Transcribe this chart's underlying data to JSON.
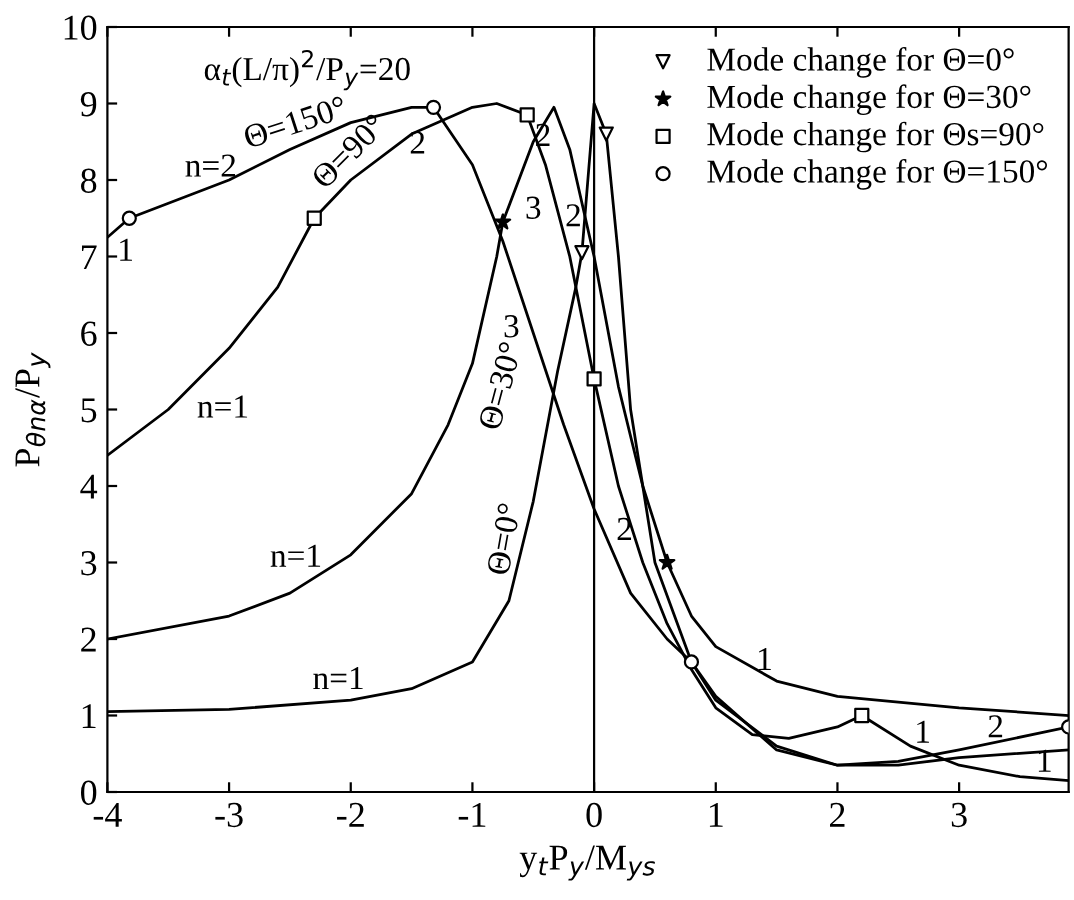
{
  "chart_data": {
    "type": "line",
    "xlabel": "y$_{t}$P$_{y}$/M$_{ys}$",
    "ylabel": "P$_{θnα}$/P$_{y}$",
    "xlim": [
      -4,
      3.9
    ],
    "ylim": [
      0,
      10
    ],
    "xticks": [
      -4,
      -3,
      -2,
      -1,
      0,
      1,
      2,
      3
    ],
    "yticks": [
      0,
      1,
      2,
      3,
      4,
      5,
      6,
      7,
      8,
      9,
      10
    ],
    "grid": false,
    "legend": "top right",
    "line_style": "solid",
    "ref_lines": [
      {
        "axis": "x",
        "value": 0,
        "color": "#000000"
      }
    ],
    "series": [
      {
        "color": "#000000",
        "marker": "none",
        "x": [
          -4,
          -3,
          -2,
          -1.5,
          -1,
          -0.7,
          -0.5,
          -0.3,
          -0.15,
          -0.1,
          0,
          0.1,
          0.2,
          0.3,
          0.5,
          0.8,
          1,
          1.5,
          2,
          2.5,
          3,
          3.9
        ],
        "values": [
          1.05,
          1.08,
          1.2,
          1.35,
          1.7,
          2.5,
          3.8,
          5.5,
          6.6,
          7.05,
          9.0,
          8.6,
          7.0,
          5.0,
          3.0,
          1.7,
          1.2,
          0.6,
          0.35,
          0.35,
          0.45,
          0.55
        ]
      },
      {
        "color": "#000000",
        "marker": "none",
        "x": [
          -4,
          -3,
          -2.5,
          -2,
          -1.5,
          -1.2,
          -1,
          -0.8,
          -0.75,
          -0.5,
          -0.33,
          -0.2,
          0,
          0.2,
          0.4,
          0.6,
          0.8,
          1,
          1.5,
          2,
          3,
          3.9
        ],
        "values": [
          2.0,
          2.3,
          2.6,
          3.1,
          3.9,
          4.8,
          5.6,
          7.0,
          7.45,
          8.5,
          8.95,
          8.4,
          7.0,
          5.3,
          4.0,
          3.0,
          2.3,
          1.9,
          1.45,
          1.25,
          1.1,
          1.0
        ]
      },
      {
        "color": "#000000",
        "marker": "none",
        "x": [
          -4,
          -3.5,
          -3,
          -2.6,
          -2.3,
          -2,
          -1.5,
          -1,
          -0.8,
          -0.55,
          -0.4,
          -0.2,
          0,
          0.2,
          0.4,
          0.6,
          0.8,
          1,
          1.3,
          1.6,
          2.0,
          2.2,
          2.6,
          3,
          3.5,
          3.9
        ],
        "values": [
          4.4,
          5.0,
          5.8,
          6.6,
          7.5,
          8.0,
          8.6,
          8.95,
          9.0,
          8.85,
          8.2,
          7.0,
          5.4,
          4.0,
          3.0,
          2.2,
          1.6,
          1.1,
          0.75,
          0.7,
          0.85,
          1.0,
          0.6,
          0.35,
          0.2,
          0.15
        ]
      },
      {
        "color": "#000000",
        "marker": "none",
        "x": [
          -4,
          -3.82,
          -3,
          -2.5,
          -2,
          -1.5,
          -1.32,
          -1,
          -0.75,
          -0.5,
          -0.25,
          0,
          0.3,
          0.6,
          0.8,
          1,
          1.5,
          2,
          2.5,
          3,
          3.9
        ],
        "values": [
          7.25,
          7.5,
          8.0,
          8.4,
          8.75,
          8.95,
          8.95,
          8.2,
          7.2,
          6.0,
          4.8,
          3.7,
          2.6,
          2.0,
          1.7,
          1.25,
          0.55,
          0.35,
          0.4,
          0.55,
          0.85
        ]
      },
      {
        "type": "scatter",
        "name": "Mode change for Θ=0°",
        "color": "#000000",
        "marker": "triangle",
        "x": [
          -0.1,
          0.1
        ],
        "values": [
          7.05,
          8.6
        ]
      },
      {
        "type": "scatter",
        "name": "Mode change for Θ=30°",
        "color": "#000000",
        "marker": "star",
        "x": [
          -0.75,
          0.6
        ],
        "values": [
          7.45,
          3.0
        ]
      },
      {
        "type": "scatter",
        "name": "Mode change for Θs=90°",
        "color": "#000000",
        "marker": "square",
        "x": [
          -2.3,
          -0.55,
          0,
          2.2
        ],
        "values": [
          7.5,
          8.85,
          5.4,
          1.0
        ]
      },
      {
        "type": "scatter",
        "name": "Mode change for Θ=150°",
        "color": "#000000",
        "marker": "circle",
        "x": [
          -3.82,
          -1.32,
          0.8,
          3.9
        ],
        "values": [
          7.5,
          8.95,
          1.7,
          0.85
        ]
      }
    ],
    "annotations": [
      "α$_{t}$(L/π)$^{2}$/P$_{y}$=20",
      "Θ=150°",
      "Θ=90°",
      "Θ=30°",
      "Θ=0°",
      "n=2",
      "n=1",
      "n=1",
      "n=1",
      "1",
      "2",
      "2",
      "3",
      "3",
      "2",
      "2",
      "1",
      "1",
      "2",
      "1"
    ]
  }
}
